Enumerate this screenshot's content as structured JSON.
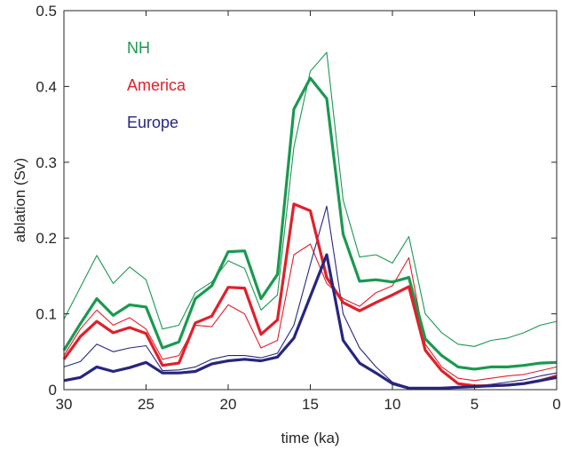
{
  "chart_data": {
    "type": "line",
    "xlabel": "time (ka)",
    "ylabel": "ablation (Sv)",
    "xlim": [
      30,
      0
    ],
    "ylim": [
      0,
      0.5
    ],
    "x_reversed": true,
    "grid": false,
    "legend_placement": "top-left",
    "xticks": [
      "30",
      "25",
      "20",
      "15",
      "10",
      "5",
      "0"
    ],
    "yticks": [
      "0",
      "0.1",
      "0.2",
      "0.3",
      "0.4",
      "0.5"
    ],
    "x": [
      30,
      29,
      28,
      27,
      26,
      25,
      24,
      23,
      22,
      21,
      20,
      19,
      18,
      17,
      16,
      15,
      14,
      13,
      12,
      11,
      10,
      9,
      8,
      7,
      6,
      5,
      4,
      3,
      2,
      1,
      0
    ],
    "legend": [
      {
        "label": "NH",
        "color": "#1a9950"
      },
      {
        "label": "America",
        "color": "#e0202a"
      },
      {
        "label": "Europe",
        "color": "#262680"
      }
    ],
    "series": [
      {
        "name": "NH",
        "style": "thick",
        "color": "#1a9950",
        "values": [
          0.052,
          0.087,
          0.12,
          0.098,
          0.112,
          0.109,
          0.055,
          0.063,
          0.12,
          0.137,
          0.182,
          0.183,
          0.12,
          0.152,
          0.37,
          0.411,
          0.384,
          0.205,
          0.143,
          0.145,
          0.142,
          0.148,
          0.067,
          0.045,
          0.03,
          0.027,
          0.03,
          0.03,
          0.032,
          0.035,
          0.036
        ]
      },
      {
        "style": "thin",
        "color": "#1a9950",
        "values": [
          0.093,
          0.135,
          0.177,
          0.14,
          0.162,
          0.145,
          0.08,
          0.085,
          0.128,
          0.142,
          0.17,
          0.16,
          0.105,
          0.125,
          0.32,
          0.42,
          0.445,
          0.25,
          0.175,
          0.178,
          0.167,
          0.202,
          0.1,
          0.075,
          0.06,
          0.057,
          0.065,
          0.068,
          0.075,
          0.085,
          0.09
        ]
      },
      {
        "name": "America",
        "style": "thick",
        "color": "#e0202a",
        "values": [
          0.04,
          0.07,
          0.09,
          0.075,
          0.082,
          0.074,
          0.032,
          0.035,
          0.088,
          0.097,
          0.135,
          0.134,
          0.073,
          0.092,
          0.245,
          0.236,
          0.148,
          0.115,
          0.104,
          0.115,
          0.125,
          0.136,
          0.052,
          0.025,
          0.008,
          0.005,
          0.005,
          0.006,
          0.008,
          0.012,
          0.018
        ]
      },
      {
        "style": "thin",
        "color": "#e0202a",
        "values": [
          0.045,
          0.08,
          0.105,
          0.085,
          0.095,
          0.08,
          0.04,
          0.045,
          0.085,
          0.083,
          0.112,
          0.1,
          0.055,
          0.065,
          0.178,
          0.192,
          0.14,
          0.12,
          0.11,
          0.128,
          0.137,
          0.174,
          0.06,
          0.03,
          0.015,
          0.012,
          0.015,
          0.018,
          0.02,
          0.025,
          0.03
        ]
      },
      {
        "name": "Europe",
        "style": "thick",
        "color": "#262680",
        "values": [
          0.012,
          0.016,
          0.03,
          0.024,
          0.029,
          0.036,
          0.022,
          0.022,
          0.024,
          0.034,
          0.038,
          0.04,
          0.038,
          0.043,
          0.068,
          0.123,
          0.178,
          0.065,
          0.035,
          0.022,
          0.008,
          0.002,
          0.002,
          0.002,
          0.003,
          0.004,
          0.005,
          0.006,
          0.008,
          0.012,
          0.016
        ]
      },
      {
        "style": "thin",
        "color": "#262680",
        "values": [
          0.03,
          0.037,
          0.06,
          0.05,
          0.055,
          0.058,
          0.025,
          0.026,
          0.03,
          0.04,
          0.045,
          0.045,
          0.042,
          0.048,
          0.085,
          0.165,
          0.242,
          0.1,
          0.055,
          0.03,
          0.01,
          0.003,
          0.002,
          0.003,
          0.004,
          0.005,
          0.007,
          0.01,
          0.013,
          0.018,
          0.022
        ]
      }
    ]
  }
}
